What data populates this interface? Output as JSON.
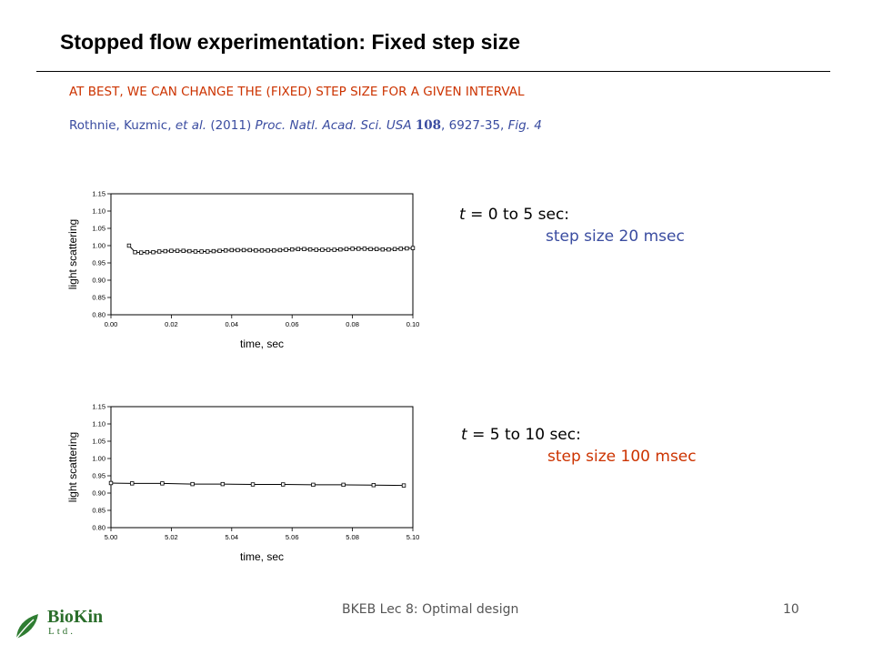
{
  "title": "Stopped flow experimentation: Fixed step size",
  "subhead": "AT BEST, WE CAN CHANGE THE (FIXED) STEP SIZE FOR A GIVEN INTERVAL",
  "citation": {
    "authors": "Rothnie, Kuzmic, ",
    "etal": "et al.",
    "year": " (2011) ",
    "journal": "Proc. Natl. Acad. Sci. USA",
    "volume": "108",
    "pages": ", 6927-35, ",
    "fig": "Fig. 4"
  },
  "notes": [
    {
      "t": "t",
      "range": " = 0 to 5 sec:",
      "detail": "step size 20 msec",
      "color": "#3a4ca0"
    },
    {
      "t": "t",
      "range": " = 5 to 10 sec:",
      "detail": "step size 100 msec",
      "color": "#cc3300"
    }
  ],
  "footer": "BKEB Lec 8: Optimal design",
  "page_number": "10",
  "logo": {
    "name": "BioKin",
    "sub": "Ltd."
  },
  "chart_data": [
    {
      "type": "scatter",
      "xlabel": "time, sec",
      "ylabel": "light scattering",
      "xlim": [
        0.0,
        0.1
      ],
      "ylim": [
        0.8,
        1.15
      ],
      "xticks": [
        "0.00",
        "0.02",
        "0.04",
        "0.06",
        "0.08",
        "0.10"
      ],
      "yticks": [
        "0.80",
        "0.85",
        "0.90",
        "0.95",
        "1.00",
        "1.05",
        "1.10",
        "1.15"
      ],
      "x": [
        0.006,
        0.008,
        0.01,
        0.012,
        0.014,
        0.016,
        0.018,
        0.02,
        0.022,
        0.024,
        0.026,
        0.028,
        0.03,
        0.032,
        0.034,
        0.036,
        0.038,
        0.04,
        0.042,
        0.044,
        0.046,
        0.048,
        0.05,
        0.052,
        0.054,
        0.056,
        0.058,
        0.06,
        0.062,
        0.064,
        0.066,
        0.068,
        0.07,
        0.072,
        0.074,
        0.076,
        0.078,
        0.08,
        0.082,
        0.084,
        0.086,
        0.088,
        0.09,
        0.092,
        0.094,
        0.096,
        0.098,
        0.1
      ],
      "y": [
        1.0,
        0.981,
        0.98,
        0.981,
        0.981,
        0.983,
        0.984,
        0.985,
        0.985,
        0.985,
        0.984,
        0.983,
        0.983,
        0.983,
        0.984,
        0.985,
        0.986,
        0.987,
        0.987,
        0.987,
        0.987,
        0.986,
        0.986,
        0.986,
        0.986,
        0.987,
        0.988,
        0.989,
        0.99,
        0.99,
        0.989,
        0.988,
        0.988,
        0.988,
        0.988,
        0.989,
        0.99,
        0.991,
        0.991,
        0.991,
        0.99,
        0.99,
        0.989,
        0.989,
        0.99,
        0.991,
        0.992,
        0.993
      ]
    },
    {
      "type": "scatter",
      "xlabel": "time, sec",
      "ylabel": "light scattering",
      "xlim": [
        5.0,
        5.1
      ],
      "ylim": [
        0.8,
        1.15
      ],
      "xticks": [
        "5.00",
        "5.02",
        "5.04",
        "5.06",
        "5.08",
        "5.10"
      ],
      "yticks": [
        "0.80",
        "0.85",
        "0.90",
        "0.95",
        "1.00",
        "1.05",
        "1.10",
        "1.15"
      ],
      "x": [
        5.0,
        5.007,
        5.017,
        5.027,
        5.037,
        5.047,
        5.057,
        5.067,
        5.077,
        5.087,
        5.097
      ],
      "y": [
        0.929,
        0.928,
        0.928,
        0.926,
        0.926,
        0.925,
        0.925,
        0.924,
        0.924,
        0.923,
        0.922
      ]
    }
  ]
}
